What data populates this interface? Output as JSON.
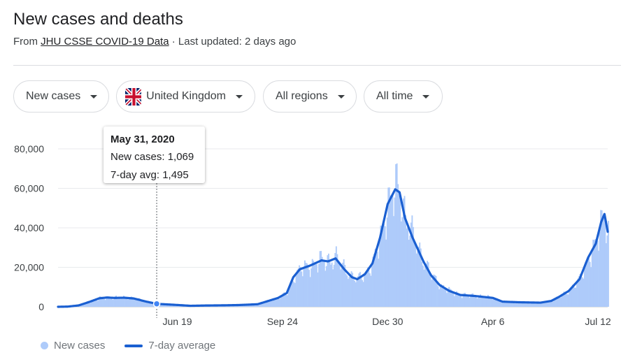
{
  "header": {
    "title": "New cases and deaths",
    "subtitle_prefix": "From ",
    "source_link": "JHU CSSE COVID-19 Data",
    "subtitle_suffix": " · Last updated: 2 days ago"
  },
  "filters": [
    {
      "label": "New cases"
    },
    {
      "label": "United Kingdom",
      "icon": "uk-flag-icon"
    },
    {
      "label": "All regions"
    },
    {
      "label": "All time"
    }
  ],
  "tooltip": {
    "date": "May 31, 2020",
    "new_cases": "New cases: 1,069",
    "avg": "7-day avg: 1,495"
  },
  "legend": {
    "new_cases": "New cases",
    "avg": "7-day average"
  },
  "colors": {
    "bars": "#aecbfa",
    "line": "#1a5fd1",
    "grid": "#e8eaed"
  },
  "chart_data": {
    "type": "area",
    "x_start": "2020-03-01",
    "x_end": "2021-07-21",
    "ylim": [
      0,
      80000
    ],
    "yticks": [
      0,
      20000,
      40000,
      60000,
      80000
    ],
    "ytick_labels": [
      "0",
      "20,000",
      "40,000",
      "60,000",
      "80,000"
    ],
    "xticks": [
      {
        "date": "2020-06-19",
        "label": "Jun 19"
      },
      {
        "date": "2020-09-24",
        "label": "Sep 24"
      },
      {
        "date": "2020-12-30",
        "label": "Dec 30"
      },
      {
        "date": "2021-04-06",
        "label": "Apr 6"
      },
      {
        "date": "2021-07-12",
        "label": "Jul 12"
      }
    ],
    "highlight": {
      "date": "2020-05-31",
      "new_cases": 1069,
      "avg": 1495
    },
    "series": [
      {
        "name": "7-day average",
        "points": [
          [
            "2020-03-01",
            0
          ],
          [
            "2020-03-10",
            100
          ],
          [
            "2020-03-20",
            700
          ],
          [
            "2020-03-30",
            2500
          ],
          [
            "2020-04-08",
            4300
          ],
          [
            "2020-04-15",
            4700
          ],
          [
            "2020-04-22",
            4500
          ],
          [
            "2020-05-01",
            4600
          ],
          [
            "2020-05-10",
            4200
          ],
          [
            "2020-05-20",
            2800
          ],
          [
            "2020-05-31",
            1495
          ],
          [
            "2020-06-10",
            1200
          ],
          [
            "2020-06-20",
            900
          ],
          [
            "2020-07-01",
            500
          ],
          [
            "2020-07-15",
            650
          ],
          [
            "2020-08-01",
            750
          ],
          [
            "2020-08-15",
            900
          ],
          [
            "2020-09-01",
            1300
          ],
          [
            "2020-09-10",
            2800
          ],
          [
            "2020-09-20",
            4500
          ],
          [
            "2020-09-28",
            7000
          ],
          [
            "2020-10-04",
            15000
          ],
          [
            "2020-10-10",
            19000
          ],
          [
            "2020-10-20",
            21000
          ],
          [
            "2020-10-30",
            23500
          ],
          [
            "2020-11-05",
            23000
          ],
          [
            "2020-11-12",
            24500
          ],
          [
            "2020-11-20",
            19000
          ],
          [
            "2020-11-27",
            15000
          ],
          [
            "2020-12-02",
            14000
          ],
          [
            "2020-12-09",
            16500
          ],
          [
            "2020-12-16",
            22000
          ],
          [
            "2020-12-23",
            35000
          ],
          [
            "2020-12-30",
            52000
          ],
          [
            "2021-01-06",
            59500
          ],
          [
            "2021-01-10",
            58000
          ],
          [
            "2021-01-15",
            45000
          ],
          [
            "2021-01-22",
            35000
          ],
          [
            "2021-02-01",
            23000
          ],
          [
            "2021-02-08",
            16000
          ],
          [
            "2021-02-16",
            11000
          ],
          [
            "2021-02-25",
            8000
          ],
          [
            "2021-03-07",
            6000
          ],
          [
            "2021-03-20",
            5500
          ],
          [
            "2021-04-06",
            4500
          ],
          [
            "2021-04-15",
            2600
          ],
          [
            "2021-04-30",
            2300
          ],
          [
            "2021-05-20",
            2100
          ],
          [
            "2021-05-30",
            3000
          ],
          [
            "2021-06-06",
            5000
          ],
          [
            "2021-06-15",
            8000
          ],
          [
            "2021-06-25",
            14000
          ],
          [
            "2021-07-03",
            25000
          ],
          [
            "2021-07-10",
            32000
          ],
          [
            "2021-07-15",
            43000
          ],
          [
            "2021-07-18",
            47000
          ],
          [
            "2021-07-21",
            38000
          ]
        ]
      }
    ]
  }
}
